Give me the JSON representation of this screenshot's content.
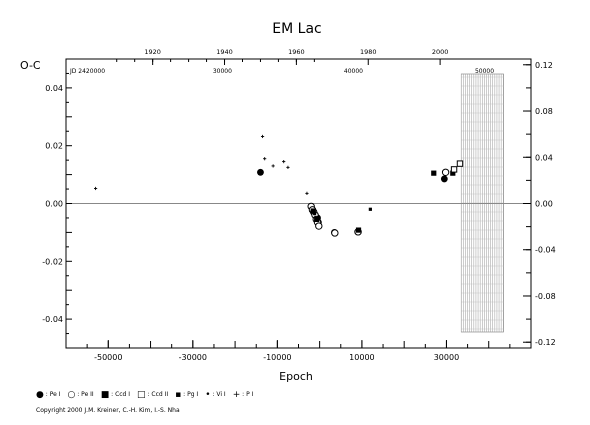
{
  "chart_data": {
    "type": "scatter",
    "title": "EM Lac",
    "xlabel": "Epoch",
    "ylabel": "O-C",
    "xlim": [
      -60000,
      50000
    ],
    "ylim": [
      -0.05,
      0.05
    ],
    "y2lim": [
      -0.125,
      0.125
    ],
    "x_ticks": [
      "-50000",
      "-30000",
      "-10000",
      "10000",
      "30000"
    ],
    "y_ticks": [
      "0.04",
      "0.02",
      "0.00",
      "-0.02",
      "-0.04"
    ],
    "y2_ticks": [
      "0.12",
      "0.08",
      "0.04",
      "0.00",
      "-0.04",
      "-0.08",
      "-0.12"
    ],
    "year_axis": {
      "labels": [
        "1920",
        "1940",
        "1960",
        "1980",
        "2000"
      ],
      "x": [
        -39500,
        -22500,
        -5500,
        11500,
        28500
      ]
    },
    "jd_axis": {
      "prefix": "JD 2420000",
      "labels": [
        "30000",
        "40000",
        "50000"
      ],
      "x": [
        -23000,
        8000,
        39000
      ]
    },
    "future_band": [
      33500,
      43500
    ],
    "grid": false,
    "series": [
      {
        "name": "Pe I",
        "symbol": "filled-circle",
        "points": [
          [
            -14000,
            0.0108
          ],
          [
            -1000,
            -0.004
          ],
          [
            -500,
            -0.005
          ],
          [
            -300,
            -0.0065
          ],
          [
            3500,
            -0.01
          ],
          [
            9000,
            -0.0098
          ],
          [
            29500,
            0.0085
          ]
        ]
      },
      {
        "name": "Pe II",
        "symbol": "open-circle",
        "points": [
          [
            -2000,
            -0.001
          ],
          [
            -1700,
            -0.0022
          ],
          [
            -1400,
            -0.003
          ],
          [
            -1100,
            -0.004
          ],
          [
            -800,
            -0.0055
          ],
          [
            -500,
            -0.0065
          ],
          [
            -200,
            -0.0078
          ],
          [
            3600,
            -0.0102
          ],
          [
            9100,
            -0.0098
          ],
          [
            29800,
            0.0108
          ]
        ]
      },
      {
        "name": "Ccd I",
        "symbol": "filled-square",
        "points": [
          [
            -1500,
            -0.0026
          ],
          [
            -700,
            -0.0055
          ],
          [
            9200,
            -0.0092
          ],
          [
            27000,
            0.0105
          ],
          [
            31500,
            0.0105
          ]
        ]
      },
      {
        "name": "Ccd II",
        "symbol": "open-square",
        "points": [
          [
            31800,
            0.0118
          ],
          [
            33200,
            0.0138
          ]
        ]
      },
      {
        "name": "Pg I",
        "symbol": "small-square",
        "points": [
          [
            12000,
            -0.002
          ]
        ]
      },
      {
        "name": "Vi I",
        "symbol": "dot",
        "points": [
          [
            -1200,
            -0.0035
          ],
          [
            -400,
            -0.005
          ]
        ]
      },
      {
        "name": "P I",
        "symbol": "plus",
        "points": [
          [
            -53000,
            0.0052
          ],
          [
            -13500,
            0.0232
          ],
          [
            -13000,
            0.0155
          ],
          [
            -11000,
            0.013
          ],
          [
            -8500,
            0.0145
          ],
          [
            -7500,
            0.0125
          ],
          [
            -3000,
            0.0035
          ]
        ]
      }
    ]
  },
  "legend": [
    {
      "sym": "●",
      "label": ": Pe I"
    },
    {
      "sym": "○",
      "label": ": Pe II"
    },
    {
      "sym": "■",
      "label": ": Ccd I"
    },
    {
      "sym": "□",
      "label": ": Ccd II"
    },
    {
      "sym": "▪",
      "label": ": Pg I"
    },
    {
      "sym": "•",
      "label": ": Vi I"
    },
    {
      "sym": "+",
      "label": ": P I"
    }
  ],
  "copyright": "Copyright 2000 J.M. Kreiner, C.-H. Kim, I.-S. Nha"
}
